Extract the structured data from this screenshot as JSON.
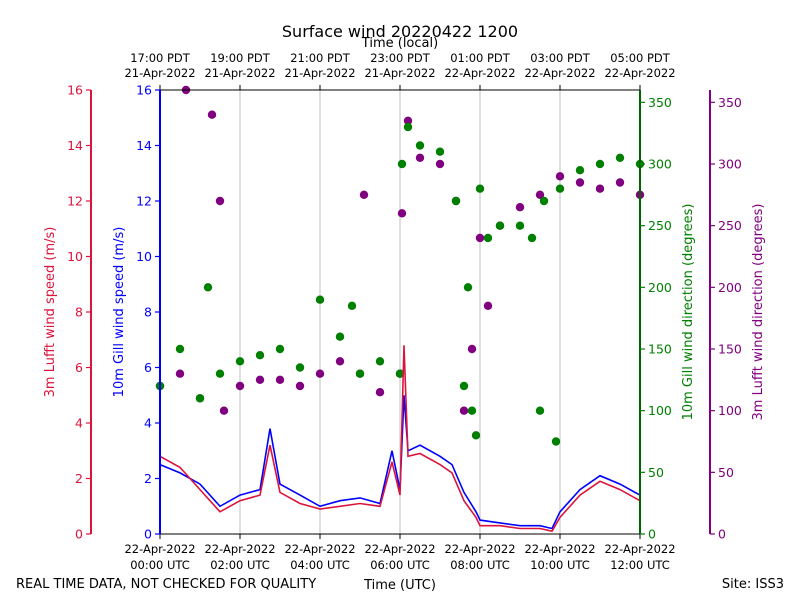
{
  "chart_data": {
    "type": "line+scatter",
    "title": "Surface wind 20220422 1200",
    "top_axis_label": "Time (local)",
    "xlabel": "Time (UTC)",
    "footer_left": "REAL TIME DATA, NOT CHECKED FOR QUALITY",
    "footer_right": "Site: ISS3",
    "xlim_hours": [
      0,
      12
    ],
    "bottom_ticks": [
      {
        "h": 0,
        "line1": "22-Apr-2022",
        "line2": "00:00 UTC"
      },
      {
        "h": 2,
        "line1": "22-Apr-2022",
        "line2": "02:00 UTC"
      },
      {
        "h": 4,
        "line1": "22-Apr-2022",
        "line2": "04:00 UTC"
      },
      {
        "h": 6,
        "line1": "22-Apr-2022",
        "line2": "06:00 UTC"
      },
      {
        "h": 8,
        "line1": "22-Apr-2022",
        "line2": "08:00 UTC"
      },
      {
        "h": 10,
        "line1": "22-Apr-2022",
        "line2": "10:00 UTC"
      },
      {
        "h": 12,
        "line1": "22-Apr-2022",
        "line2": "12:00 UTC"
      }
    ],
    "top_ticks": [
      {
        "h": 0,
        "line1": "17:00 PDT",
        "line2": "21-Apr-2022"
      },
      {
        "h": 2,
        "line1": "19:00 PDT",
        "line2": "21-Apr-2022"
      },
      {
        "h": 4,
        "line1": "21:00 PDT",
        "line2": "21-Apr-2022"
      },
      {
        "h": 6,
        "line1": "23:00 PDT",
        "line2": "21-Apr-2022"
      },
      {
        "h": 8,
        "line1": "01:00 PDT",
        "line2": "22-Apr-2022"
      },
      {
        "h": 10,
        "line1": "03:00 PDT",
        "line2": "22-Apr-2022"
      },
      {
        "h": 12,
        "line1": "05:00 PDT",
        "line2": "22-Apr-2022"
      }
    ],
    "axes": {
      "lufft_speed": {
        "label": "3m Lufft wind speed (m/s)",
        "color": "#dc143c",
        "ylim": [
          0,
          16
        ],
        "ticks": [
          0,
          2,
          4,
          6,
          8,
          10,
          12,
          14,
          16
        ]
      },
      "gill_speed": {
        "label": "10m Gill wind speed (m/s)",
        "color": "#0000ff",
        "ylim": [
          0,
          16
        ],
        "ticks": [
          0,
          2,
          4,
          6,
          8,
          10,
          12,
          14,
          16
        ]
      },
      "gill_dir": {
        "label": "10m Gill wind direction (degrees)",
        "color": "#008000",
        "ylim": [
          0,
          360
        ],
        "ticks": [
          0,
          50,
          100,
          150,
          200,
          250,
          300,
          350
        ]
      },
      "lufft_dir": {
        "label": "3m Lufft wind direction (degrees)",
        "color": "#800080",
        "ylim": [
          0,
          360
        ],
        "ticks": [
          0,
          50,
          100,
          150,
          200,
          250,
          300,
          350
        ]
      }
    },
    "series": [
      {
        "name": "10m Gill wind speed",
        "kind": "line",
        "axis": "gill_speed",
        "color": "#0000ff",
        "x": [
          0,
          0.5,
          1,
          1.5,
          2,
          2.5,
          2.75,
          3,
          3.5,
          4,
          4.5,
          5,
          5.5,
          5.8,
          6,
          6.1,
          6.2,
          6.5,
          7,
          7.3,
          7.6,
          7.9,
          8,
          8.5,
          9,
          9.5,
          9.8,
          10,
          10.5,
          11,
          11.5,
          12
        ],
        "y": [
          2.5,
          2.2,
          1.8,
          1.0,
          1.4,
          1.6,
          3.8,
          1.8,
          1.4,
          1.0,
          1.2,
          1.3,
          1.1,
          3.0,
          1.6,
          5.0,
          3.0,
          3.2,
          2.8,
          2.5,
          1.5,
          0.8,
          0.5,
          0.4,
          0.3,
          0.3,
          0.2,
          0.8,
          1.6,
          2.1,
          1.8,
          1.4
        ]
      },
      {
        "name": "3m Lufft wind speed",
        "kind": "line",
        "axis": "lufft_speed",
        "color": "#dc143c",
        "x": [
          0,
          0.5,
          1,
          1.5,
          2,
          2.5,
          2.75,
          3,
          3.5,
          4,
          4.5,
          5,
          5.5,
          5.8,
          6,
          6.1,
          6.2,
          6.5,
          7,
          7.3,
          7.6,
          7.9,
          8,
          8.5,
          9,
          9.5,
          9.8,
          10,
          10.5,
          11,
          11.5,
          12
        ],
        "y": [
          2.8,
          2.4,
          1.6,
          0.8,
          1.2,
          1.4,
          3.2,
          1.5,
          1.1,
          0.9,
          1.0,
          1.1,
          1.0,
          2.6,
          1.4,
          6.8,
          2.8,
          2.9,
          2.5,
          2.2,
          1.2,
          0.6,
          0.3,
          0.3,
          0.2,
          0.2,
          0.1,
          0.6,
          1.4,
          1.9,
          1.6,
          1.2
        ]
      },
      {
        "name": "10m Gill wind direction",
        "kind": "scatter",
        "axis": "gill_dir",
        "color": "#008000",
        "x": [
          0,
          0.5,
          1,
          1.2,
          1.5,
          2,
          2.5,
          3,
          3.5,
          4,
          4.5,
          4.8,
          5,
          5.5,
          6,
          6.05,
          6.2,
          6.5,
          7,
          7.4,
          7.6,
          7.7,
          7.8,
          7.9,
          8,
          8.2,
          8.5,
          9,
          9.3,
          9.5,
          9.6,
          9.9,
          10,
          10.5,
          11,
          11.5,
          12
        ],
        "y": [
          120,
          150,
          110,
          200,
          130,
          140,
          145,
          150,
          135,
          190,
          160,
          185,
          130,
          140,
          130,
          300,
          330,
          315,
          310,
          270,
          120,
          200,
          100,
          80,
          280,
          240,
          250,
          250,
          240,
          100,
          270,
          75,
          280,
          295,
          300,
          305,
          300
        ]
      },
      {
        "name": "3m Lufft wind direction",
        "kind": "scatter",
        "axis": "lufft_dir",
        "color": "#800080",
        "x": [
          0,
          0.5,
          0.65,
          1,
          1.3,
          1.5,
          1.6,
          2,
          2.5,
          3,
          3.5,
          4,
          4.5,
          5,
          5.1,
          5.5,
          6,
          6.05,
          6.2,
          6.5,
          7,
          7.4,
          7.6,
          7.8,
          8,
          8.2,
          8.5,
          9,
          9.5,
          10,
          10.5,
          11,
          11.5,
          12
        ],
        "y": [
          120,
          130,
          360,
          110,
          340,
          270,
          100,
          120,
          125,
          125,
          120,
          130,
          140,
          130,
          275,
          115,
          130,
          260,
          335,
          305,
          300,
          270,
          100,
          150,
          240,
          185,
          250,
          265,
          275,
          290,
          285,
          280,
          285,
          275
        ]
      }
    ]
  }
}
